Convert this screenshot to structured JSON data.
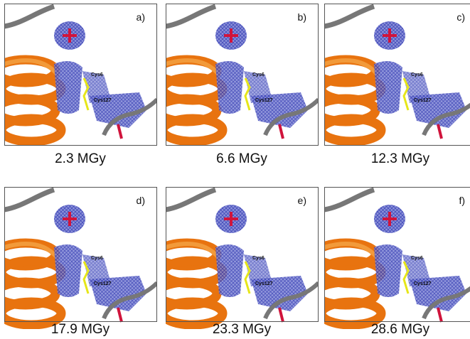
{
  "panels": [
    {
      "letter": "a)",
      "dose": "2.3 MGy",
      "residues": [
        "Cys6",
        "Cys127"
      ]
    },
    {
      "letter": "b)",
      "dose": "6.6 MGy",
      "residues": [
        "Cys6",
        "Cys127"
      ]
    },
    {
      "letter": "c)",
      "dose": "12.3 MGy",
      "residues": [
        "Cys6",
        "Cys127"
      ]
    },
    {
      "letter": "d)",
      "dose": "17.9 MGy",
      "residues": [
        "Cys6",
        "Cys127"
      ]
    },
    {
      "letter": "e)",
      "dose": "23.3 MGy",
      "residues": [
        "Cys6",
        "Cys127"
      ]
    },
    {
      "letter": "f)",
      "dose": "28.6 MGy",
      "residues": [
        "Cys6",
        "Cys127"
      ]
    }
  ]
}
